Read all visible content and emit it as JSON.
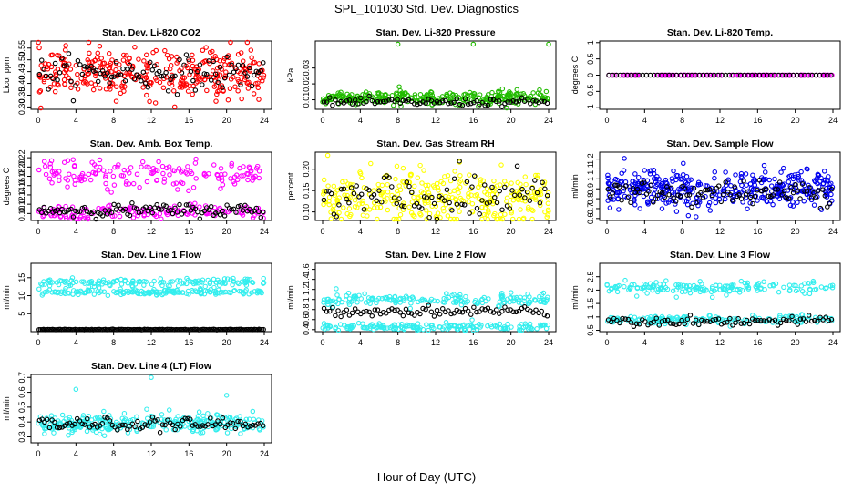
{
  "figure": {
    "title": "SPL_101030  Std. Dev. Diagnostics",
    "xlabel": "Hour of Day (UTC)"
  },
  "chart_data": [
    {
      "type": "scatter",
      "title": "Stan. Dev. Li-820 CO2",
      "ylabel": "Licor ppm",
      "xlim": [
        0,
        24
      ],
      "ylim": [
        0.29,
        0.58
      ],
      "yticks": [
        0.3,
        0.35,
        0.4,
        0.45,
        0.5,
        0.55
      ],
      "xticks": [
        0,
        4,
        8,
        12,
        16,
        20,
        24
      ],
      "color": "#ff0000",
      "mean": 0.445,
      "spread": 0.05,
      "black_mean": 0.445,
      "black_spread": 0.035,
      "n": 340,
      "nb": 100
    },
    {
      "type": "scatter",
      "title": "Stan. Dev. Li-820 Pressure",
      "ylabel": "kPa",
      "xlim": [
        0,
        24
      ],
      "ylim": [
        0.004,
        0.047
      ],
      "yticks": [
        0.01,
        0.02,
        0.03
      ],
      "xticks": [
        0,
        4,
        8,
        12,
        16,
        20,
        24
      ],
      "color": "#22bb00",
      "mean": 0.011,
      "spread": 0.0022,
      "black_mean": 0.0085,
      "black_spread": 0.0012,
      "n": 300,
      "nb": 80,
      "outliers": [
        [
          8,
          0.045
        ],
        [
          16,
          0.045
        ],
        [
          24,
          0.045
        ]
      ]
    },
    {
      "type": "scatter",
      "title": "Stan. Dev. Li-820 Temp.",
      "ylabel": "degrees C",
      "xlim": [
        0,
        24
      ],
      "ylim": [
        -1.05,
        1.05
      ],
      "yticks": [
        -1.0,
        -0.5,
        0.0,
        0.5,
        1.0
      ],
      "xticks": [
        0,
        4,
        8,
        12,
        16,
        20,
        24
      ],
      "color": "#ff00ff",
      "mean": 0.0,
      "spread": 0.0,
      "black_mean": 0.0,
      "black_spread": 0.0,
      "n": 120,
      "nb": 60
    },
    {
      "type": "scatter",
      "title": "Stan. Dev. Amb. Box Temp.",
      "ylabel": "degrees C",
      "xlim": [
        0,
        24
      ],
      "ylim": [
        0.085,
        0.232
      ],
      "yticks": [
        0.1,
        0.12,
        0.14,
        0.16,
        0.18,
        0.2,
        0.22
      ],
      "xticks": [
        0,
        4,
        8,
        12,
        16,
        20,
        24
      ],
      "color": "#ff00ff",
      "mean": 0.185,
      "spread": 0.015,
      "mean2": 0.103,
      "spread2": 0.008,
      "black_mean": 0.107,
      "black_spread": 0.007,
      "n": 300,
      "nb": 100
    },
    {
      "type": "scatter",
      "title": "Stan. Dev. Gas Stream RH",
      "ylabel": "percent",
      "xlim": [
        0,
        24
      ],
      "ylim": [
        0.08,
        0.24
      ],
      "yticks": [
        0.1,
        0.15,
        0.2
      ],
      "xticks": [
        0,
        4,
        8,
        12,
        16,
        20,
        24
      ],
      "color": "#ffff00",
      "mean": 0.135,
      "spread": 0.03,
      "black_mean": 0.13,
      "black_spread": 0.03,
      "n": 340,
      "nb": 90
    },
    {
      "type": "scatter",
      "title": "Stan. Dev. Sample Flow",
      "ylabel": "ml/min",
      "xlim": [
        0,
        24
      ],
      "ylim": [
        0.58,
        1.27
      ],
      "yticks": [
        0.6,
        0.7,
        0.8,
        0.9,
        1.0,
        1.1,
        1.2
      ],
      "xticks": [
        0,
        4,
        8,
        12,
        16,
        20,
        24
      ],
      "color": "#0000ee",
      "mean": 0.9,
      "spread": 0.09,
      "black_mean": 0.86,
      "black_spread": 0.06,
      "n": 400,
      "nb": 100
    },
    {
      "type": "scatter",
      "title": "Stan. Dev. Line 1 Flow",
      "ylabel": "ml/min",
      "xlim": [
        0,
        24
      ],
      "ylim": [
        0,
        19
      ],
      "yticks": [
        5,
        10,
        15
      ],
      "xticks": [
        0,
        4,
        8,
        12,
        16,
        20,
        24
      ],
      "color": "#33eeee",
      "mean": 13.8,
      "spread": 0.6,
      "mean2": 11.0,
      "spread2": 0.4,
      "black_mean": 0.6,
      "black_spread": 0.05,
      "n": 300,
      "nb": 150
    },
    {
      "type": "scatter",
      "title": "Stan. Dev. Line 2 Flow",
      "ylabel": "ml/min",
      "xlim": [
        0,
        24
      ],
      "ylim": [
        0.36,
        1.72
      ],
      "yticks": [
        0.4,
        0.6,
        0.8,
        1.0,
        1.2,
        1.4,
        1.6
      ],
      "xticks": [
        0,
        4,
        8,
        12,
        16,
        20,
        24
      ],
      "color": "#33eeee",
      "mean": 1.0,
      "spread": 0.06,
      "mean2": 0.45,
      "spread2": 0.04,
      "black_mean": 0.77,
      "black_spread": 0.05,
      "n": 340,
      "nb": 80
    },
    {
      "type": "scatter",
      "title": "Stan. Dev. Line 3 Flow",
      "ylabel": "ml/min",
      "xlim": [
        0,
        24
      ],
      "ylim": [
        0.45,
        3.0
      ],
      "yticks": [
        0.5,
        1.0,
        1.5,
        2.0,
        2.5
      ],
      "xticks": [
        0,
        4,
        8,
        12,
        16,
        20,
        24
      ],
      "color": "#33eeee",
      "mean": 2.1,
      "spread": 0.12,
      "mean2": 0.9,
      "spread2": 0.08,
      "black_mean": 0.85,
      "black_spread": 0.08,
      "n": 340,
      "nb": 80
    },
    {
      "type": "scatter",
      "title": "Stan. Dev. Line 4 (LT) Flow",
      "ylabel": "ml/min",
      "xlim": [
        0,
        24
      ],
      "ylim": [
        0.26,
        0.72
      ],
      "yticks": [
        0.3,
        0.4,
        0.5,
        0.6,
        0.7
      ],
      "xticks": [
        0,
        4,
        8,
        12,
        16,
        20,
        24
      ],
      "color": "#33eeee",
      "mean": 0.39,
      "spread": 0.03,
      "black_mean": 0.385,
      "black_spread": 0.02,
      "n": 300,
      "nb": 90,
      "outliers": [
        [
          4,
          0.62
        ],
        [
          12,
          0.7
        ],
        [
          20,
          0.58
        ]
      ]
    }
  ]
}
